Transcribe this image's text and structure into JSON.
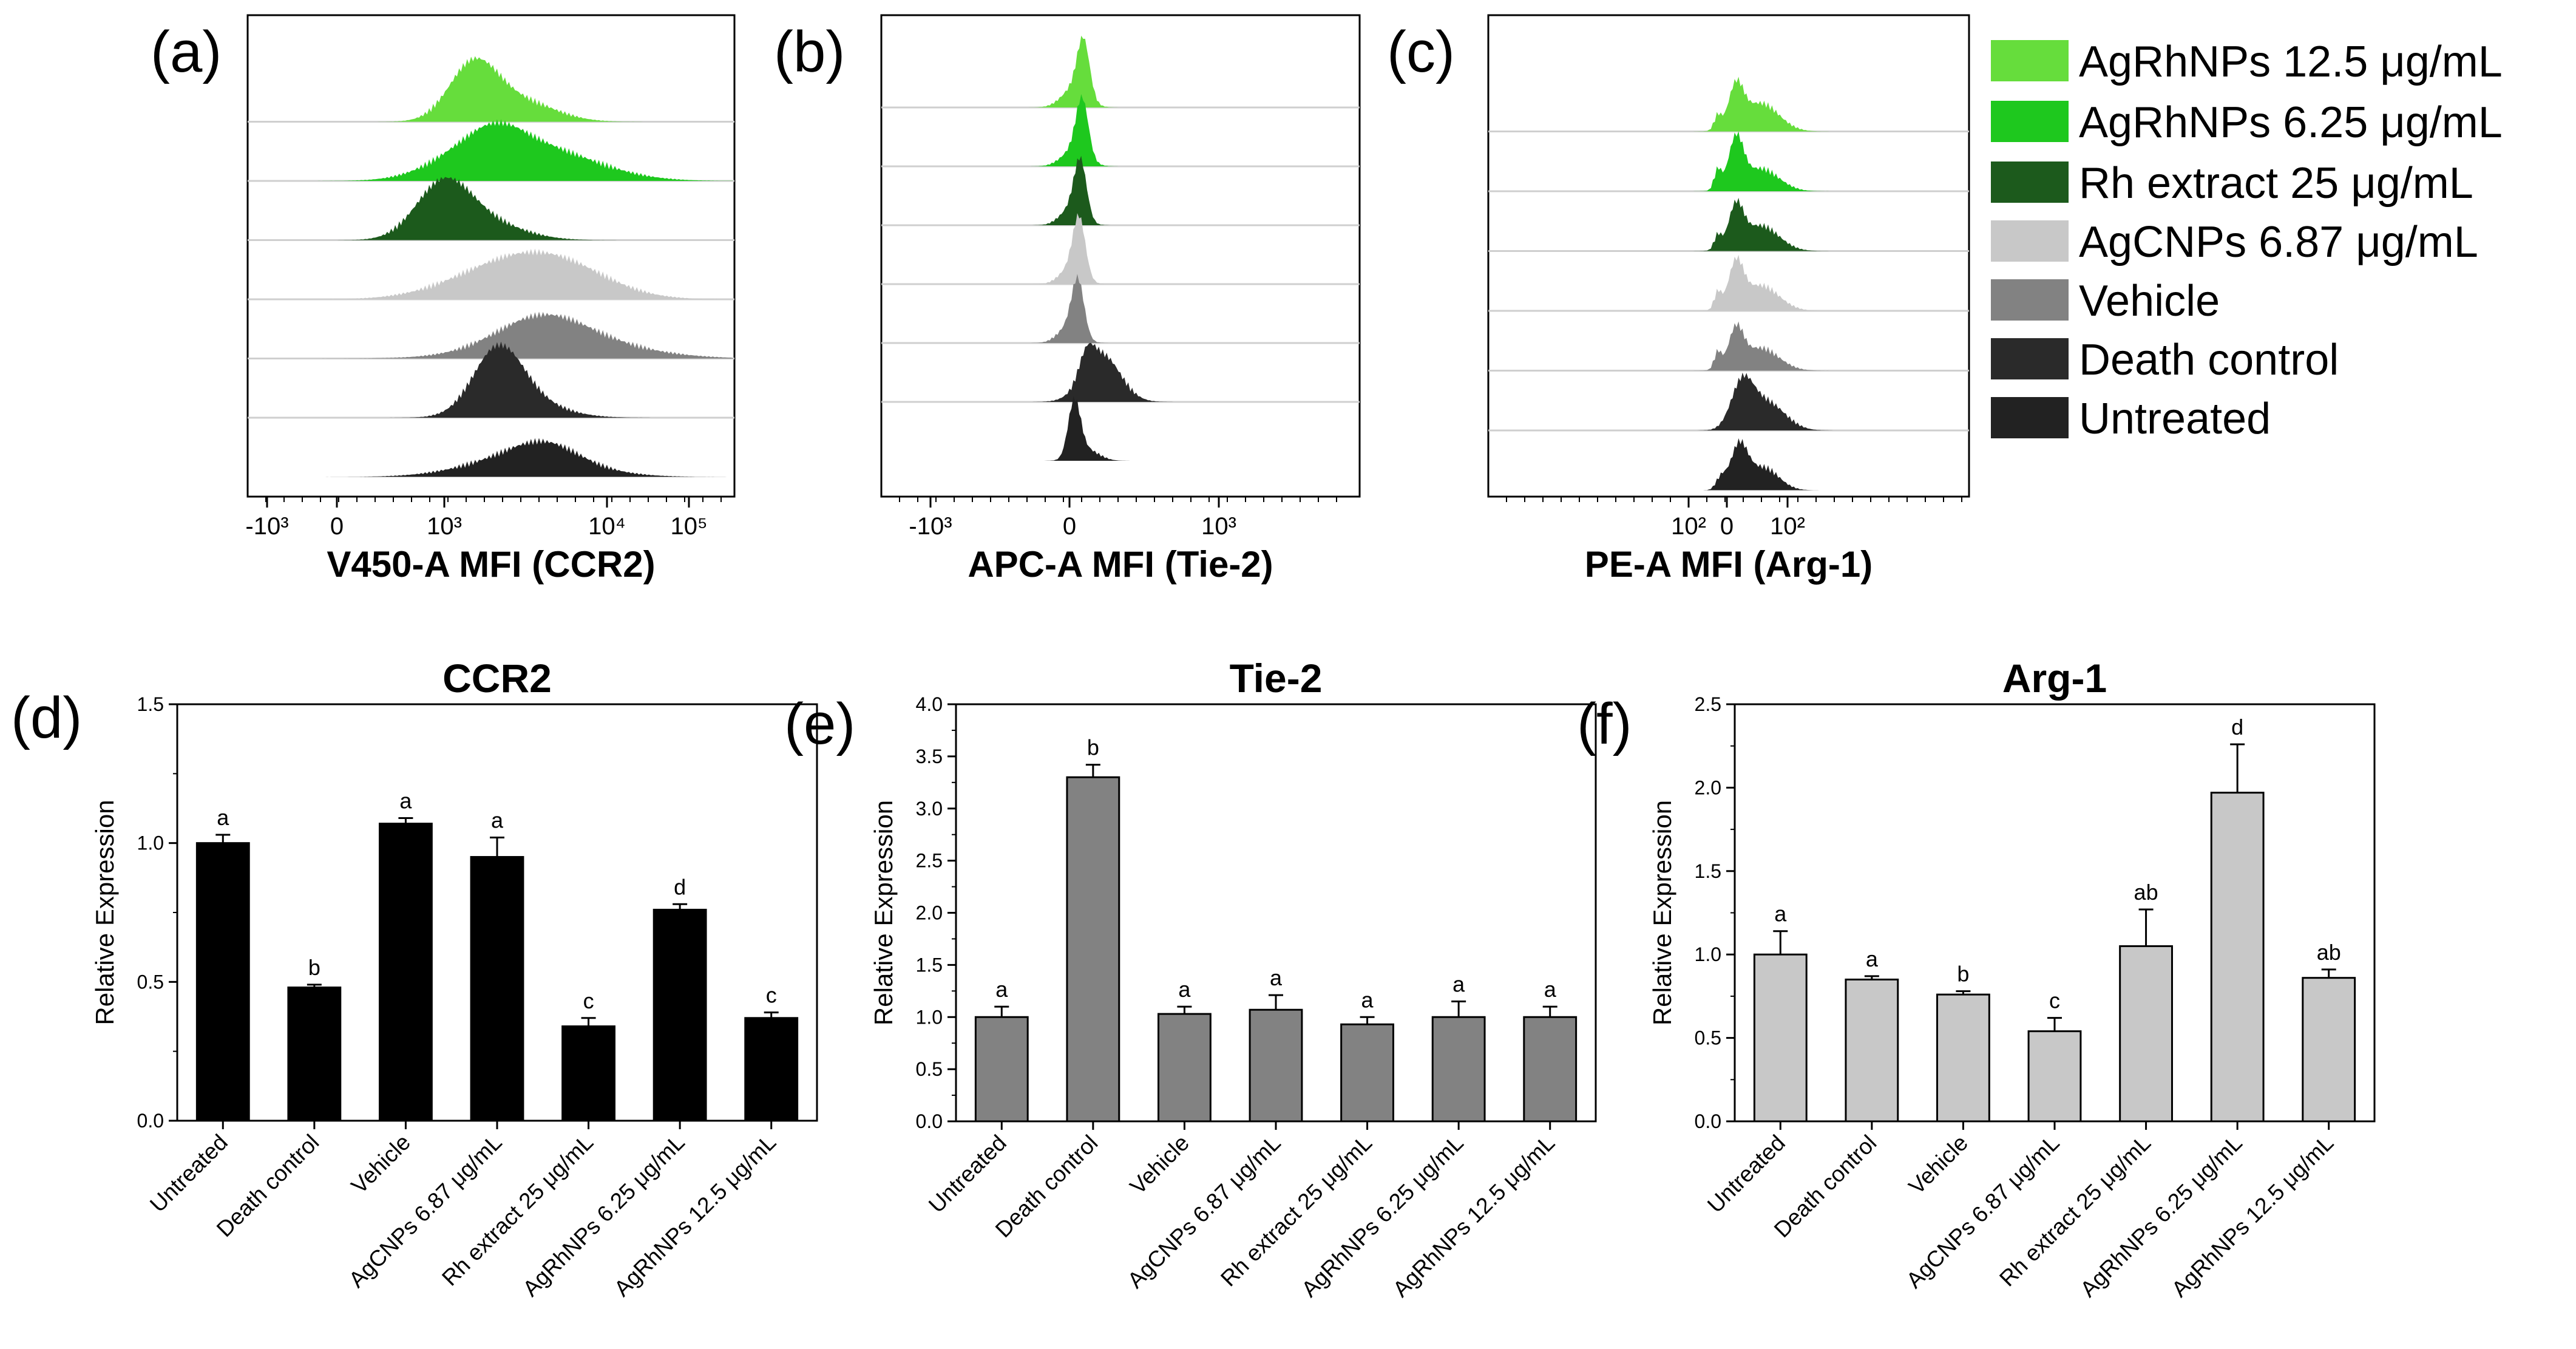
{
  "panel_labels": [
    "(a)",
    "(b)",
    "(c)",
    "(d)",
    "(e)",
    "(f)"
  ],
  "legend": [
    {
      "label": "AgRhNPs 12.5 μg/mL",
      "color": "#66dd3c"
    },
    {
      "label": "AgRhNPs 6.25 μg/mL",
      "color": "#1ec81e"
    },
    {
      "label": "Rh extract 25 μg/mL",
      "color": "#1c5a1c"
    },
    {
      "label": "AgCNPs 6.87 μg/mL",
      "color": "#c8c8c8"
    },
    {
      "label": "Vehicle",
      "color": "#828282"
    },
    {
      "label": "Death control",
      "color": "#2a2a2a"
    },
    {
      "label": "Untreated",
      "color": "#222222"
    }
  ],
  "chart_data": [
    {
      "type": "histogram",
      "panel": "(a)",
      "xlabel": "V450-A MFI (CCR2)",
      "ticks": [
        "-10³",
        "0",
        "10³",
        "10⁴",
        "10⁵"
      ],
      "series_order_top_to_bottom": [
        "AgRhNPs 12.5 μg/mL",
        "AgRhNPs 6.25 μg/mL",
        "Rh extract 25 μg/mL",
        "AgCNPs 6.87 μg/mL",
        "Vehicle",
        "Death control",
        "Untreated"
      ]
    },
    {
      "type": "histogram",
      "panel": "(b)",
      "xlabel": "APC-A MFI (Tie-2)",
      "ticks": [
        "-10³",
        "0",
        "10³"
      ],
      "series_order_top_to_bottom": [
        "AgRhNPs 12.5 μg/mL",
        "AgRhNPs 6.25 μg/mL",
        "Rh extract 25 μg/mL",
        "AgCNPs 6.87 μg/mL",
        "Vehicle",
        "Death control",
        "Untreated"
      ]
    },
    {
      "type": "histogram",
      "panel": "(c)",
      "xlabel": "PE-A MFI (Arg-1)",
      "ticks": [
        "10²",
        "0",
        "10²"
      ],
      "series_order_top_to_bottom": [
        "AgRhNPs 12.5 μg/mL",
        "AgRhNPs 6.25 μg/mL",
        "Rh extract 25 μg/mL",
        "AgCNPs 6.87 μg/mL",
        "Vehicle",
        "Death control",
        "Untreated"
      ]
    },
    {
      "type": "bar",
      "panel": "(d)",
      "title": "CCR2",
      "ylabel": "Relative Expression",
      "ylim": [
        0,
        1.5
      ],
      "yticks": [
        "0.0",
        "0.5",
        "1.0",
        "1.5"
      ],
      "bar_color": "#000000",
      "categories": [
        "Untreated",
        "Death control",
        "Vehicle",
        "AgCNPs 6.87 μg/mL",
        "Rh extract 25 μg/mL",
        "AgRhNPs 6.25 μg/mL",
        "AgRhNPs 12.5 μg/mL"
      ],
      "values": [
        1.0,
        0.48,
        1.07,
        0.95,
        0.34,
        0.76,
        0.37
      ],
      "errors": [
        0.03,
        0.01,
        0.02,
        0.07,
        0.03,
        0.02,
        0.02
      ],
      "letters": [
        "a",
        "b",
        "a",
        "a",
        "c",
        "d",
        "c"
      ]
    },
    {
      "type": "bar",
      "panel": "(e)",
      "title": "Tie-2",
      "ylabel": "Relative Expression",
      "ylim": [
        0,
        4.0
      ],
      "yticks": [
        "0.0",
        "0.5",
        "1.0",
        "1.5",
        "2.0",
        "2.5",
        "3.0",
        "3.5",
        "4.0"
      ],
      "bar_color": "#828282",
      "categories": [
        "Untreated",
        "Death control",
        "Vehicle",
        "AgCNPs 6.87 μg/mL",
        "Rh extract 25 μg/mL",
        "AgRhNPs 6.25 μg/mL",
        "AgRhNPs 12.5 μg/mL"
      ],
      "values": [
        1.0,
        3.3,
        1.03,
        1.07,
        0.93,
        1.0,
        1.0
      ],
      "errors": [
        0.1,
        0.12,
        0.07,
        0.14,
        0.07,
        0.15,
        0.1
      ],
      "letters": [
        "a",
        "b",
        "a",
        "a",
        "a",
        "a",
        "a"
      ]
    },
    {
      "type": "bar",
      "panel": "(f)",
      "title": "Arg-1",
      "ylabel": "Relative Expression",
      "ylim": [
        0,
        2.5
      ],
      "yticks": [
        "0.0",
        "0.5",
        "1.0",
        "1.5",
        "2.0",
        "2.5"
      ],
      "bar_color": "#c8c8c8",
      "categories": [
        "Untreated",
        "Death control",
        "Vehicle",
        "AgCNPs 6.87 μg/mL",
        "Rh extract 25 μg/mL",
        "AgRhNPs 6.25 μg/mL",
        "AgRhNPs 12.5 μg/mL"
      ],
      "values": [
        1.0,
        0.85,
        0.76,
        0.54,
        1.05,
        1.97,
        0.86
      ],
      "errors": [
        0.14,
        0.02,
        0.02,
        0.08,
        0.22,
        0.29,
        0.05
      ],
      "letters": [
        "a",
        "a",
        "b",
        "c",
        "ab",
        "d",
        "ab"
      ]
    }
  ]
}
